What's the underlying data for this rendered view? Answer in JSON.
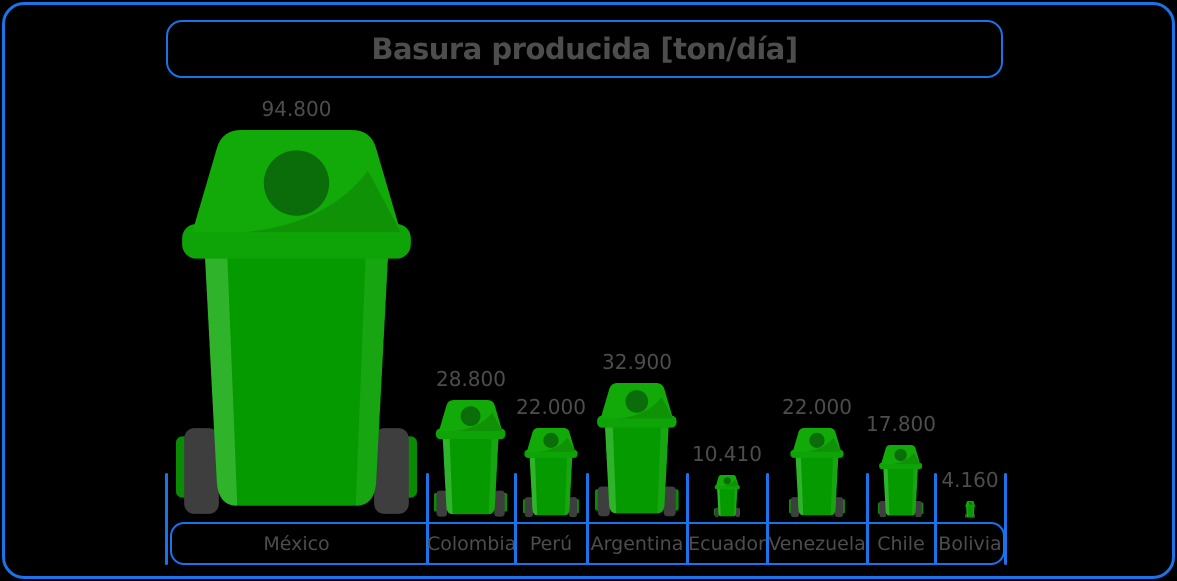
{
  "title": "Basura producida [ton/día]",
  "chart_data": {
    "type": "bar",
    "subtype": "pictogram",
    "pictogram": "trash-bin",
    "title": "Basura producida [ton/día]",
    "unit": "ton/día",
    "xlabel": "",
    "ylabel": "",
    "categories": [
      "México",
      "Colombia",
      "Perú",
      "Argentina",
      "Ecuador",
      "Venezuela",
      "Chile",
      "Bolivia"
    ],
    "values": [
      94800,
      28800,
      22000,
      32900,
      10410,
      22000,
      17800,
      4160
    ],
    "value_labels": [
      "94.800",
      "28.800",
      "22.000",
      "32.900",
      "10.410",
      "22.000",
      "17.800",
      "4.160"
    ],
    "legend": false,
    "grid": false,
    "baseline_shared": true,
    "bar_color": "#059a00"
  },
  "colors": {
    "border_blue": "#1a73e8",
    "background": "#000000",
    "text_gray": "#4d4d4d",
    "bin_body": "#059a00",
    "bin_body_highlight": "#2eb32a",
    "bin_body_edge": "#17a511",
    "bin_flange": "#0ea307",
    "bin_lid": "#12aa08",
    "bin_lid_hole": "#0a6d0a",
    "bin_axle_tab": "#0b8a03",
    "bin_wheel": "#3e3e3e"
  }
}
